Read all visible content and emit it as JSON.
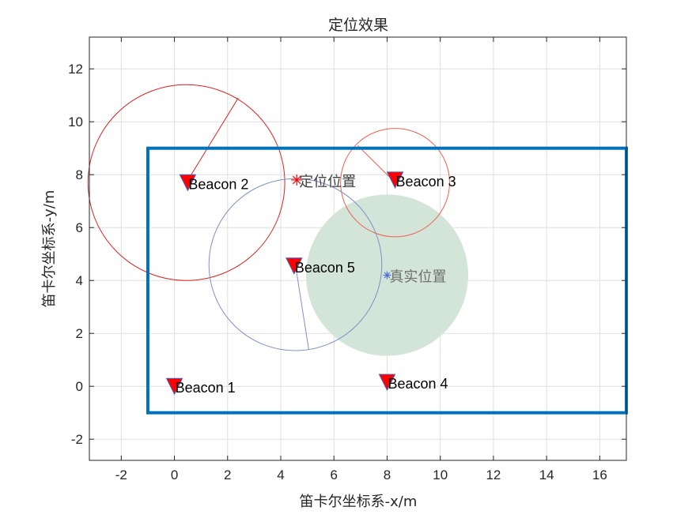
{
  "chart_data": {
    "type": "scatter",
    "title": "定位效果",
    "xlabel": "笛卡尔坐标系-x/m",
    "ylabel": "笛卡尔坐标系-y/m",
    "xlim": [
      -3.2,
      17
    ],
    "ylim": [
      -2.8,
      13.2
    ],
    "xticks": [
      -2,
      0,
      2,
      4,
      6,
      8,
      10,
      12,
      14,
      16
    ],
    "yticks": [
      -2,
      0,
      2,
      4,
      6,
      8,
      10,
      12
    ],
    "grid": true,
    "boundary": {
      "x": [
        -1,
        17
      ],
      "y": [
        -1,
        9
      ],
      "color": "#0072BD"
    },
    "beacons": [
      {
        "label": "Beacon 1",
        "x": 0,
        "y": 0
      },
      {
        "label": "Beacon 2",
        "x": 0.5,
        "y": 7.7
      },
      {
        "label": "Beacon 3",
        "x": 8.3,
        "y": 7.8
      },
      {
        "label": "Beacon 4",
        "x": 8,
        "y": 0.15
      },
      {
        "label": "Beacon 5",
        "x": 4.5,
        "y": 4.55
      }
    ],
    "beacon_color": "#FF0000",
    "circles": [
      {
        "cx": 0.45,
        "cy": 7.7,
        "r": 3.7,
        "color": "#E02020",
        "spoke_to": [
          2.4,
          10.9
        ]
      },
      {
        "cx": 8.3,
        "cy": 7.7,
        "r": 2.05,
        "color": "#F06050",
        "spoke_to": [
          6.9,
          9.1
        ]
      },
      {
        "cx": 4.55,
        "cy": 4.6,
        "r": 3.25,
        "color": "#8090C8",
        "spoke_to": [
          5.05,
          1.4
        ]
      }
    ],
    "true_region": {
      "cx": 8,
      "cy": 4.2,
      "r": 3.05,
      "color": "#D3E4D9"
    },
    "estimated_position": {
      "label": "定位位置",
      "x": 4.6,
      "y": 7.8,
      "color": "#FF0000"
    },
    "true_position": {
      "label": "真实位置",
      "x": 8,
      "y": 4.2,
      "color": "#5070E0"
    }
  }
}
